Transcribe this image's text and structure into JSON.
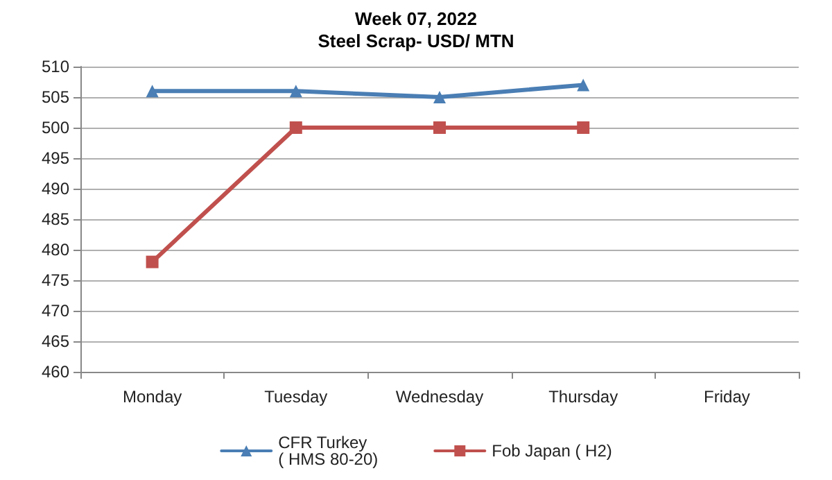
{
  "chart_data": {
    "type": "line",
    "title": "Week 07, 2022",
    "subtitle": "Steel Scrap- USD/ MTN",
    "categories": [
      "Monday",
      "Tuesday",
      "Wednesday",
      "Thursday",
      "Friday"
    ],
    "series": [
      {
        "name": "CFR Turkey\n( HMS 80-20)",
        "color": "#4a7eb4",
        "marker": "triangle",
        "values": [
          506,
          506,
          505,
          507,
          null
        ]
      },
      {
        "name": "Fob Japan ( H2)",
        "color": "#c0504d",
        "marker": "square",
        "values": [
          478,
          500,
          500,
          500,
          null
        ]
      }
    ],
    "ylim": [
      460,
      510
    ],
    "yticks": [
      460,
      465,
      470,
      475,
      480,
      485,
      490,
      495,
      500,
      505,
      510
    ],
    "grid": "y",
    "legend": "bottom",
    "line_style": "solid"
  }
}
